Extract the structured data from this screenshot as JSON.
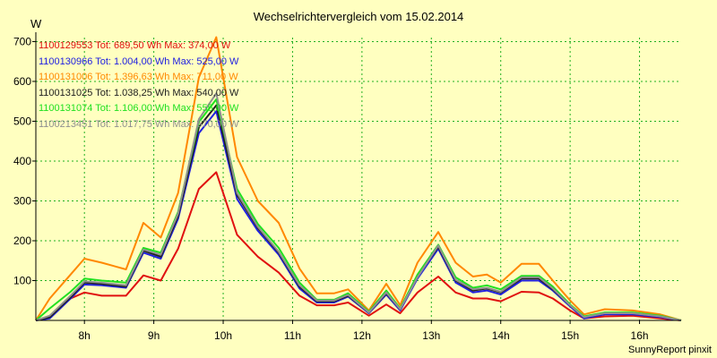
{
  "chart_data": {
    "type": "line",
    "title": "Wechselrichtervergleich vom 15.02.2014",
    "ylabel": "W",
    "xlabel": "",
    "ylim": [
      0,
      710
    ],
    "xlim": [
      7.3,
      16.6
    ],
    "yticks": [
      100,
      200,
      300,
      400,
      500,
      600,
      700
    ],
    "xticks": [
      {
        "value": 8,
        "label": "8h"
      },
      {
        "value": 9,
        "label": "9h"
      },
      {
        "value": 10,
        "label": "10h"
      },
      {
        "value": 11,
        "label": "11h"
      },
      {
        "value": 12,
        "label": "12h"
      },
      {
        "value": 13,
        "label": "13h"
      },
      {
        "value": 14,
        "label": "14h"
      },
      {
        "value": 15,
        "label": "15h"
      },
      {
        "value": 16,
        "label": "16h"
      }
    ],
    "grid": true,
    "x": [
      7.3,
      7.5,
      7.8,
      8.0,
      8.25,
      8.6,
      8.85,
      9.1,
      9.35,
      9.65,
      9.9,
      10.2,
      10.5,
      10.8,
      11.1,
      11.35,
      11.6,
      11.8,
      12.1,
      12.35,
      12.55,
      12.8,
      13.1,
      13.35,
      13.6,
      13.8,
      14.0,
      14.3,
      14.55,
      14.75,
      15.0,
      15.2,
      15.5,
      15.9,
      16.3,
      16.6
    ],
    "series": [
      {
        "name": "1100129553",
        "label": "1100129553 Tot: 689,50 Wh Max: 374,00 W",
        "color": "#e01010",
        "values": [
          0,
          10,
          55,
          70,
          62,
          62,
          113,
          100,
          180,
          330,
          372,
          215,
          160,
          120,
          62,
          38,
          38,
          45,
          12,
          40,
          18,
          70,
          110,
          70,
          55,
          55,
          48,
          72,
          70,
          55,
          25,
          5,
          10,
          12,
          5,
          0
        ]
      },
      {
        "name": "1100130966",
        "label": "1100130966 Tot: 1.004,00 Wh Max: 525,00 W",
        "color": "#2020e0",
        "values": [
          0,
          5,
          55,
          90,
          88,
          82,
          170,
          155,
          255,
          470,
          525,
          305,
          225,
          165,
          80,
          45,
          45,
          60,
          18,
          65,
          25,
          105,
          180,
          95,
          70,
          75,
          65,
          100,
          100,
          75,
          35,
          5,
          15,
          15,
          8,
          0
        ]
      },
      {
        "name": "1100131006",
        "label": "1100131006 Tot: 1.396,63 Wh Max: 711,00 W",
        "color": "#ff8800",
        "values": [
          0,
          55,
          115,
          155,
          145,
          128,
          245,
          208,
          320,
          610,
          711,
          410,
          300,
          245,
          130,
          68,
          68,
          78,
          25,
          92,
          38,
          145,
          222,
          145,
          110,
          115,
          95,
          142,
          142,
          100,
          50,
          15,
          28,
          25,
          15,
          0
        ]
      },
      {
        "name": "1100131025",
        "label": "1100131025 Tot: 1.038,25 Wh Max: 540,00 W",
        "color": "#202020",
        "values": [
          0,
          8,
          58,
          95,
          92,
          85,
          175,
          160,
          262,
          485,
          540,
          315,
          232,
          170,
          85,
          48,
          48,
          62,
          20,
          68,
          28,
          110,
          185,
          100,
          75,
          80,
          70,
          105,
          105,
          78,
          38,
          8,
          18,
          18,
          10,
          0
        ]
      },
      {
        "name": "1100131074",
        "label": "1100131074 Tot: 1.106,00 Wh Max: 555,00 W",
        "color": "#20e020",
        "values": [
          0,
          30,
          72,
          105,
          100,
          95,
          182,
          170,
          272,
          498,
          555,
          330,
          242,
          182,
          95,
          52,
          52,
          68,
          22,
          75,
          30,
          115,
          190,
          108,
          82,
          88,
          78,
          112,
          112,
          85,
          40,
          10,
          20,
          20,
          12,
          0
        ]
      },
      {
        "name": "1100213451",
        "label": "1100213451 Tot: 1.017,75 Wh Max: 570,00 W",
        "color": "#909090",
        "values": [
          0,
          12,
          62,
          98,
          95,
          88,
          178,
          165,
          268,
          505,
          570,
          320,
          235,
          172,
          88,
          50,
          50,
          64,
          20,
          70,
          28,
          108,
          188,
          102,
          78,
          82,
          72,
          108,
          108,
          80,
          38,
          8,
          18,
          18,
          10,
          0
        ]
      }
    ]
  },
  "footer": "SunnyReport pinxit"
}
